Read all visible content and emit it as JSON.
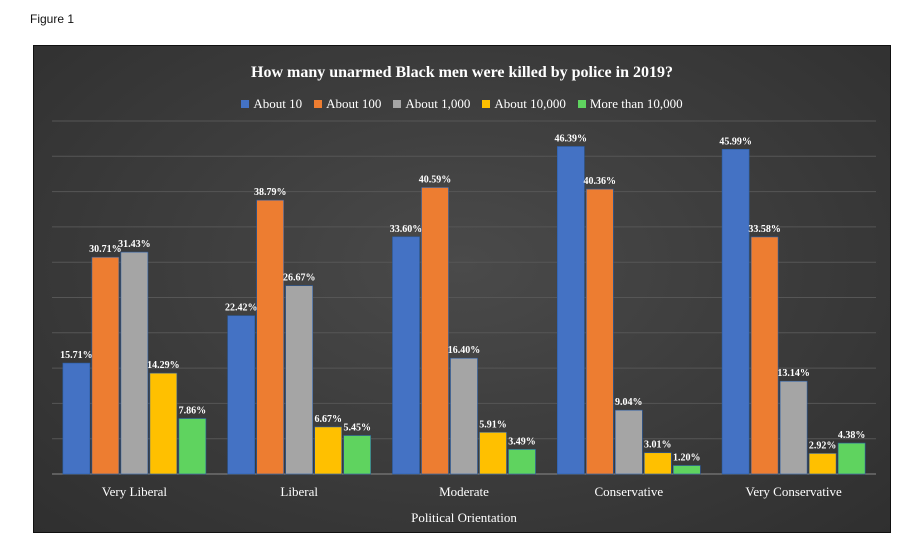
{
  "figure_label": "Figure 1",
  "chart_data": {
    "type": "bar",
    "title": "How many unarmed Black men were killed by police in 2019?",
    "xlabel": "Political Orientation",
    "ylabel": "",
    "ylim": [
      0,
      50
    ],
    "grid": true,
    "legend_position": "top",
    "categories": [
      "Very Liberal",
      "Liberal",
      "Moderate",
      "Conservative",
      "Very Conservative"
    ],
    "series": [
      {
        "name": "About 10",
        "color": "#4472C4",
        "values": [
          15.71,
          22.42,
          33.6,
          46.39,
          45.99
        ],
        "labels": [
          "15.71%",
          "22.42%",
          "33.60%",
          "46.39%",
          "45.99%"
        ]
      },
      {
        "name": "About 100",
        "color": "#ED7D31",
        "values": [
          30.71,
          38.79,
          40.59,
          40.36,
          33.58
        ],
        "labels": [
          "30.71%",
          "38.79%",
          "40.59%",
          "40.36%",
          "33.58%"
        ]
      },
      {
        "name": "About 1,000",
        "color": "#A5A5A5",
        "values": [
          31.43,
          26.67,
          16.4,
          9.04,
          13.14
        ],
        "labels": [
          "31.43%",
          "26.67%",
          "16.40%",
          "9.04%",
          "13.14%"
        ]
      },
      {
        "name": "About 10,000",
        "color": "#FFC000",
        "values": [
          14.29,
          6.67,
          5.91,
          3.01,
          2.92
        ],
        "labels": [
          "14.29%",
          "6.67%",
          "5.91%",
          "3.01%",
          "2.92%"
        ]
      },
      {
        "name": "More than 10,000",
        "color": "#5FD35F",
        "values": [
          7.86,
          5.45,
          3.49,
          1.2,
          4.38
        ],
        "labels": [
          "7.86%",
          "5.45%",
          "3.49%",
          "1.20%",
          "4.38%"
        ]
      }
    ]
  }
}
